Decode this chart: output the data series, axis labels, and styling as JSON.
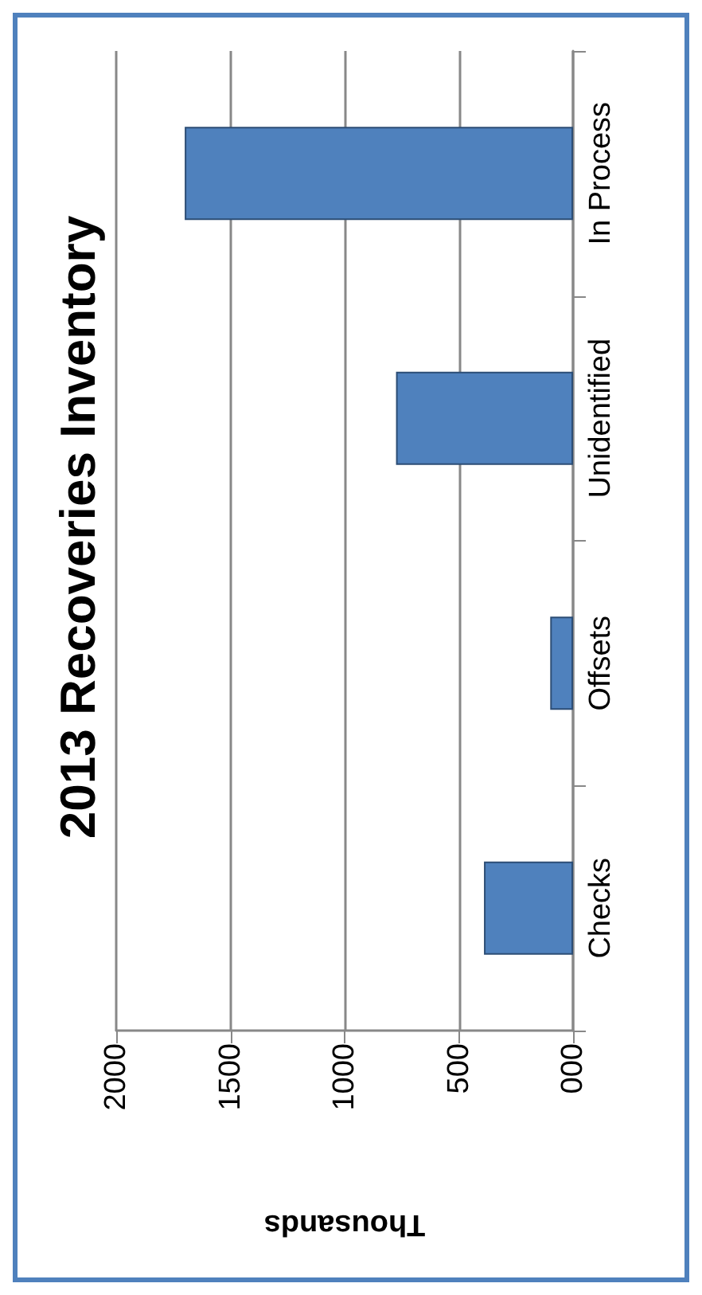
{
  "chart_data": {
    "type": "bar",
    "orientation": "horizontal",
    "title": "2013 Recoveries Inventory",
    "xlabel": "Thousands",
    "categories": [
      "In Process",
      "Unidentified",
      "Offsets",
      "Checks"
    ],
    "values": [
      1700,
      775,
      100,
      390
    ],
    "color": "#4f81bd",
    "xlim": [
      2000,
      0
    ],
    "xticks": [
      2000,
      1500,
      1000,
      500,
      {
        "value": 0,
        "label": "000"
      }
    ],
    "grid": "x"
  }
}
